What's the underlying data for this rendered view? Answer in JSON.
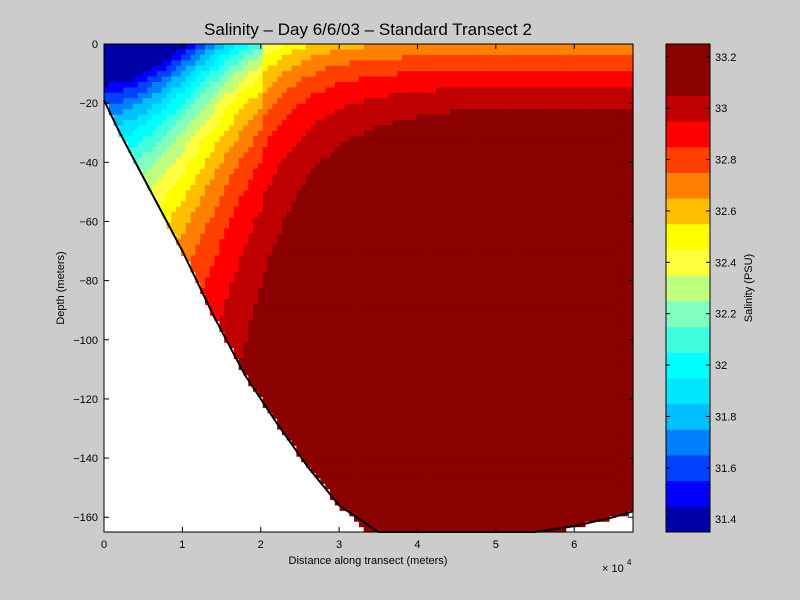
{
  "chart_data": {
    "type": "contour",
    "title": "Salinity – Day 6/6/03 – Standard Transect 2",
    "xlabel": "Distance along transect (meters)",
    "ylabel": "Depth (meters)",
    "x_exponent_label": "× 10",
    "x_exponent_power": "4",
    "xlim": [
      0,
      6.75
    ],
    "ylim": [
      -165,
      0
    ],
    "x_ticks": [
      "0",
      "1",
      "2",
      "3",
      "4",
      "5",
      "6"
    ],
    "y_ticks": [
      "0",
      "−20",
      "−40",
      "−60",
      "−80",
      "−100",
      "−120",
      "−140",
      "−160"
    ],
    "bottom_profile": {
      "x": [
        0,
        0.2,
        0.6,
        1.0,
        1.4,
        1.8,
        2.2,
        2.6,
        3.0,
        3.5,
        4.0,
        4.5,
        5.0,
        5.5,
        6.0,
        6.5,
        6.75
      ],
      "depth": [
        -19,
        -30,
        -50,
        -70,
        -92,
        -112,
        -128,
        -143,
        -156,
        -168,
        -174,
        -176,
        -174,
        -168,
        -163,
        -160,
        -158
      ]
    },
    "colorbar": {
      "label": "Salinity (PSU)",
      "ticks": [
        "31.4",
        "31.6",
        "31.8",
        "32",
        "32.2",
        "32.4",
        "32.6",
        "32.8",
        "33",
        "33.2"
      ],
      "range": [
        31.35,
        33.25
      ],
      "levels": [
        {
          "min": 31.35,
          "max": 31.45,
          "color": "#0000a8"
        },
        {
          "min": 31.45,
          "max": 31.55,
          "color": "#0000ff"
        },
        {
          "min": 31.55,
          "max": 31.65,
          "color": "#0040ff"
        },
        {
          "min": 31.65,
          "max": 31.75,
          "color": "#0080ff"
        },
        {
          "min": 31.75,
          "max": 31.85,
          "color": "#00bfff"
        },
        {
          "min": 31.85,
          "max": 31.95,
          "color": "#00e6ff"
        },
        {
          "min": 31.95,
          "max": 32.05,
          "color": "#00ffff"
        },
        {
          "min": 32.05,
          "max": 32.15,
          "color": "#40ffe0"
        },
        {
          "min": 32.15,
          "max": 32.25,
          "color": "#80ffbf"
        },
        {
          "min": 32.25,
          "max": 32.35,
          "color": "#bfff80"
        },
        {
          "min": 32.35,
          "max": 32.45,
          "color": "#ffff40"
        },
        {
          "min": 32.45,
          "max": 32.55,
          "color": "#ffff00"
        },
        {
          "min": 32.55,
          "max": 32.65,
          "color": "#ffbf00"
        },
        {
          "min": 32.65,
          "max": 32.75,
          "color": "#ff8000"
        },
        {
          "min": 32.75,
          "max": 32.85,
          "color": "#ff4000"
        },
        {
          "min": 32.85,
          "max": 32.95,
          "color": "#ff0000"
        },
        {
          "min": 32.95,
          "max": 33.05,
          "color": "#bf0000"
        },
        {
          "min": 33.05,
          "max": 33.25,
          "color": "#8b0000"
        }
      ]
    },
    "colors": {
      "figure_background": "#cccccc",
      "axes_background": "#ffffff",
      "bottom_line": "#000000"
    }
  }
}
